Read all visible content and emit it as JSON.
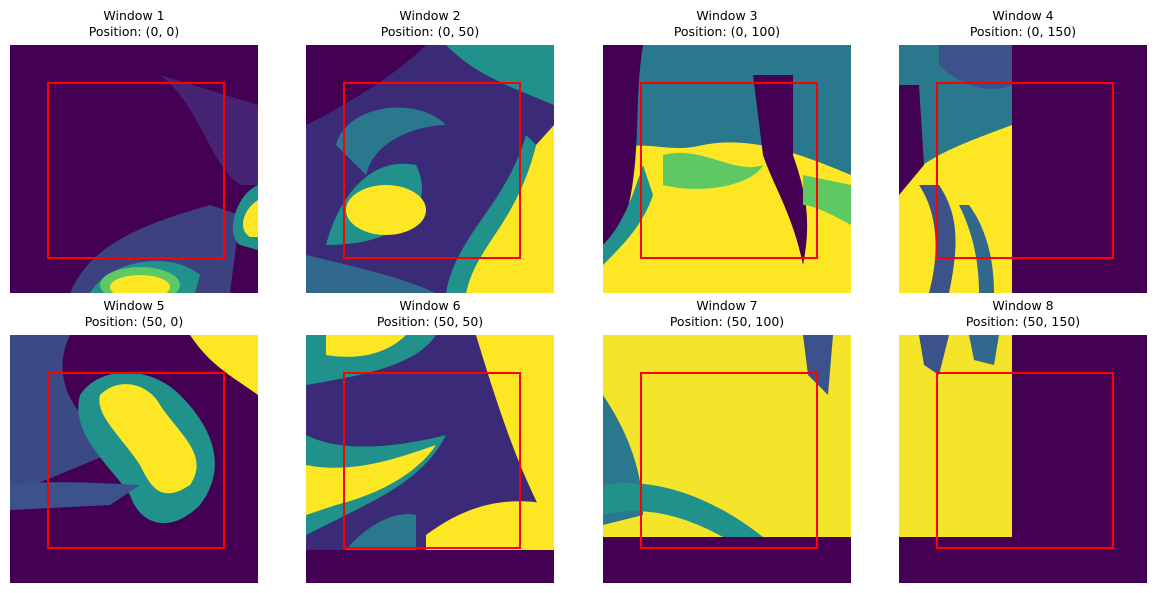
{
  "figure": {
    "colormap": "viridis",
    "highlight_color": "#ff0000",
    "panels": [
      {
        "title": "Window 1",
        "position": "Position: (0, 0)"
      },
      {
        "title": "Window 2",
        "position": "Position: (0, 50)"
      },
      {
        "title": "Window 3",
        "position": "Position: (0, 100)"
      },
      {
        "title": "Window 4",
        "position": "Position: (0, 150)"
      },
      {
        "title": "Window 5",
        "position": "Position: (50, 0)"
      },
      {
        "title": "Window 6",
        "position": "Position: (50, 50)"
      },
      {
        "title": "Window 7",
        "position": "Position: (50, 100)"
      },
      {
        "title": "Window 8",
        "position": "Position: (50, 150)"
      }
    ]
  }
}
